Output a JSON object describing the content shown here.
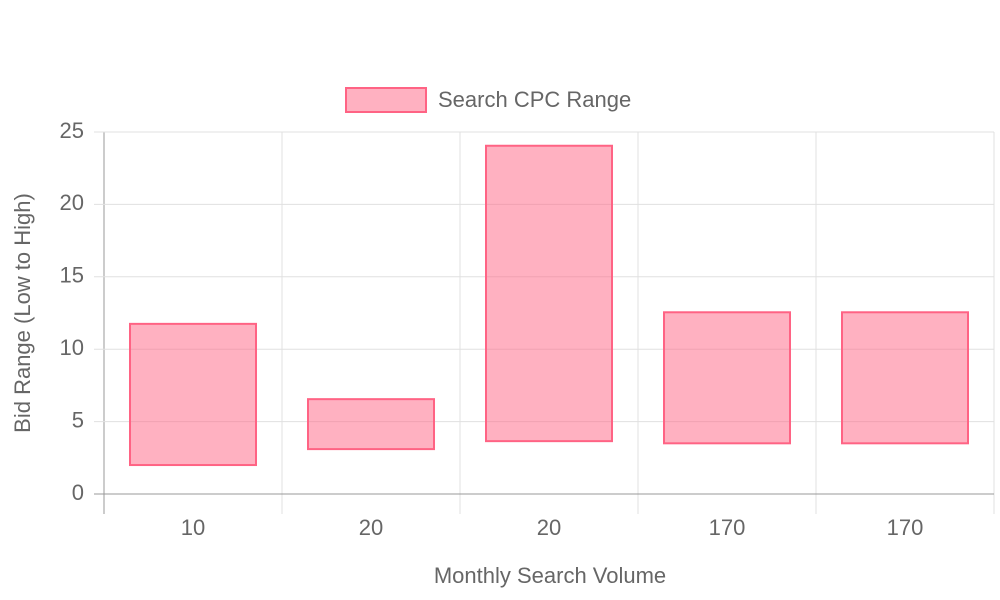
{
  "chart_data": {
    "type": "floating-bar",
    "x_label": "Monthly Search Volume",
    "y_label": "Bid Range (Low to High)",
    "categories": [
      "10",
      "20",
      "20",
      "170",
      "170"
    ],
    "series": [
      {
        "name": "Search CPC Range",
        "color": "#ff6384",
        "low": [
          2,
          3.1,
          3.65,
          3.5,
          3.5
        ],
        "high": [
          11.75,
          6.55,
          24.05,
          12.55,
          12.55
        ]
      }
    ],
    "ylim": [
      0,
      25
    ],
    "yticks": [
      0,
      5,
      10,
      15,
      20,
      25
    ],
    "grid": true,
    "legend": "top"
  }
}
